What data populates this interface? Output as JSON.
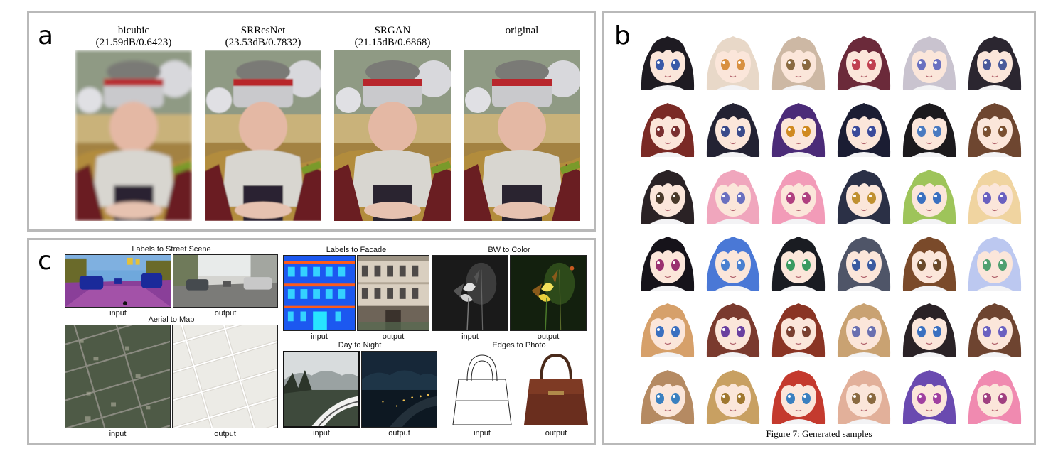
{
  "panels": {
    "a": {
      "letter": "a",
      "columns": [
        {
          "title": "bicubic",
          "metrics": "(21.59dB/0.6423)",
          "blur": 2.4
        },
        {
          "title": "SRResNet",
          "metrics": "(23.53dB/0.7832)",
          "blur": 0.8
        },
        {
          "title": "SRGAN",
          "metrics": "(21.15dB/0.6868)",
          "blur": 0
        },
        {
          "title": "original",
          "metrics": "",
          "blur": 0
        }
      ]
    },
    "b": {
      "letter": "b",
      "caption": "Figure 7: Generated samples",
      "hair_colors": [
        "#1e1b22",
        "#e8d8c8",
        "#cdb8a4",
        "#6b2a3a",
        "#c9c3cf",
        "#2b2630",
        "#7a2a25",
        "#232233",
        "#4b2b78",
        "#1b1d33",
        "#1c1a1d",
        "#6e4630",
        "#2a2225",
        "#f0a6bd",
        "#f29bb8",
        "#2b3046",
        "#9ec45a",
        "#f0d4a0",
        "#16131a",
        "#4a78d6",
        "#1a1c22",
        "#4f5568",
        "#7a4a2a",
        "#bcc8f0",
        "#d6a06a",
        "#7a3a2e",
        "#8a3424",
        "#c9a272",
        "#2a2226",
        "#6e4430",
        "#b58a62",
        "#c8a062",
        "#c43a2e",
        "#e2b09a",
        "#6a4ab0",
        "#f08ab0"
      ],
      "eye_colors": [
        "#3a5aa8",
        "#d89040",
        "#8a6a40",
        "#c04050",
        "#6a70c0",
        "#4a5a9a",
        "#7a3030",
        "#3a4a8a",
        "#d08a20",
        "#3a4a9a",
        "#4a7ac0",
        "#7a5030",
        "#4a3a2a",
        "#6a70c0",
        "#b04080",
        "#c09030",
        "#3a70c0",
        "#6a60c0",
        "#9a3070",
        "#4a80d0",
        "#3a9a60",
        "#3a5aa0",
        "#6a4a2a",
        "#50a070",
        "#3a70c0",
        "#6a40a0",
        "#7a4030",
        "#6a70b0",
        "#3a70c0",
        "#6a60c0",
        "#3a80c0",
        "#a07830",
        "#3a80c0",
        "#8a6a40",
        "#a040a0",
        "#a04080"
      ]
    },
    "c": {
      "letter": "c",
      "tasks": {
        "street": "Labels to Street Scene",
        "aerial": "Aerial to Map",
        "facade": "Labels to Facade",
        "bw": "BW to Color",
        "night": "Day to Night",
        "edges": "Edges to Photo"
      },
      "labels": {
        "input": "input",
        "output": "output"
      }
    }
  }
}
